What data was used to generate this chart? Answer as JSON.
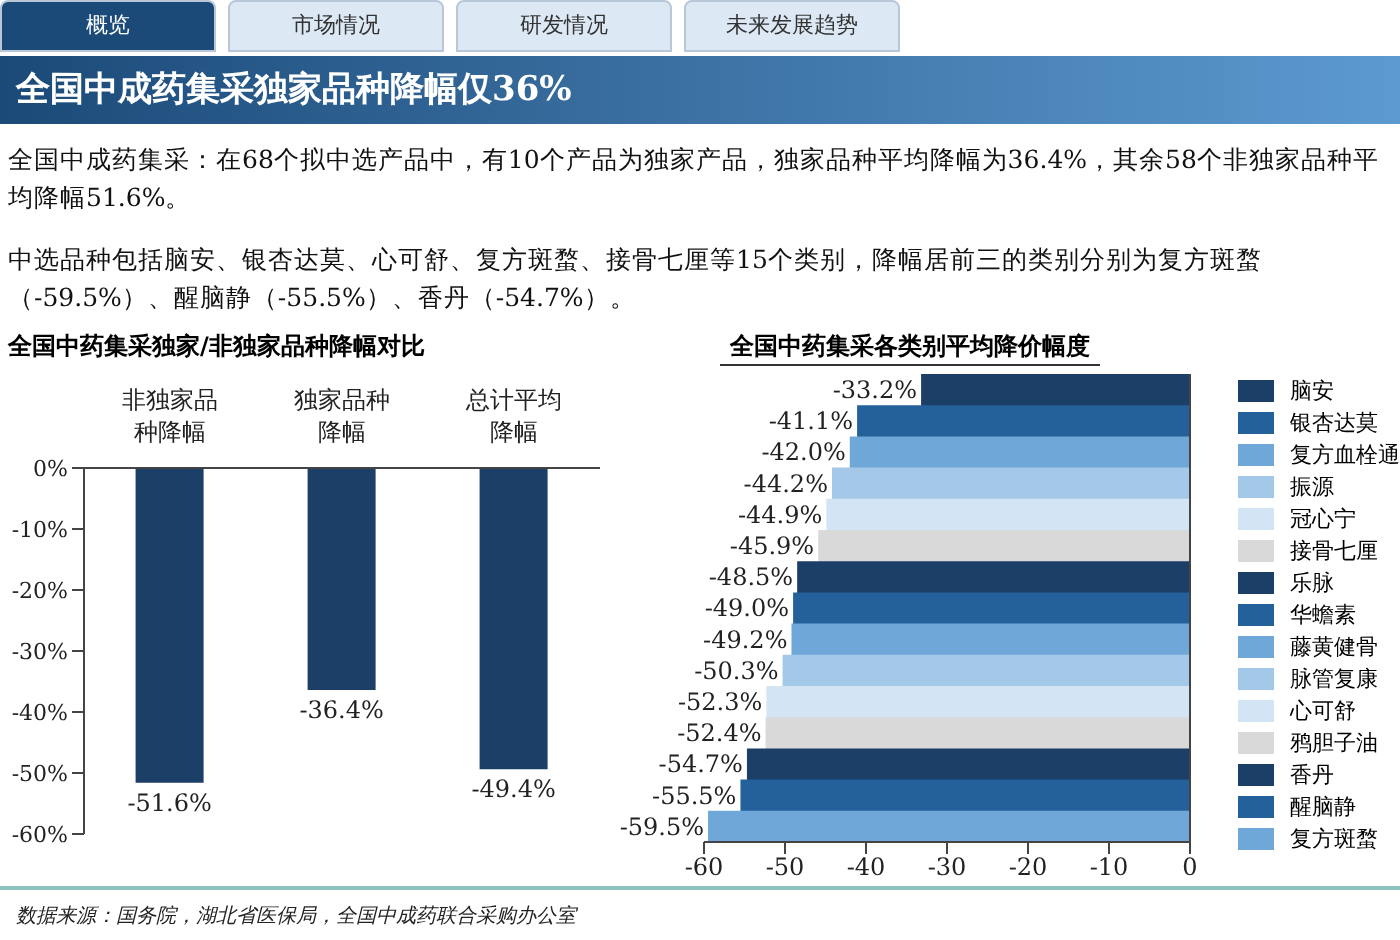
{
  "chart_data": [
    {
      "type": "other",
      "title": "全国中成药集采独家品种降幅仅36%",
      "annotations": [
        "概览",
        "市场情况",
        "研发情况",
        "未来发展趋势",
        "全国中成药集采：在68个拟中选产品中，有10个产品为独家产品，独家品种平均降幅为36.4%，其余58个非独家品种平均降幅51.6%。",
        "中选品种包括脑安、银杏达莫、心可舒、复方斑蝥、接骨七厘等15个类别，降幅居前三的类别分别为复方斑蝥（-59.5%）、醒脑静（-55.5%）、香丹（-54.7%）。",
        "数据来源：国务院，湖北省医保局，全国中成药联合采购办公室"
      ]
    },
    {
      "type": "bar",
      "title": "全国中药集采独家/非独家品种降幅对比",
      "categories": [
        "非独家品种降幅",
        "独家品种降幅",
        "总计平均降幅"
      ],
      "values": [
        -51.6,
        -36.4,
        -49.4
      ],
      "color": "#1b3f66",
      "value_labels": [
        "-51.6%",
        "-36.4%",
        "-49.4%"
      ],
      "ylim": [
        -60,
        0
      ],
      "yticks": [
        {
          "value": 0,
          "label": "0%"
        },
        {
          "value": -10,
          "label": "-10%"
        },
        {
          "value": -20,
          "label": "-20%"
        },
        {
          "value": -30,
          "label": "-30%"
        },
        {
          "value": -40,
          "label": "-40%"
        },
        {
          "value": -50,
          "label": "-50%"
        },
        {
          "value": -60,
          "label": "-60%"
        }
      ]
    },
    {
      "type": "bar",
      "orientation": "horizontal",
      "title": "全国中药集采各类别平均降价幅度",
      "categories": [
        "脑安",
        "银杏达莫",
        "复方血栓通",
        "振源",
        "冠心宁",
        "接骨七厘",
        "乐脉",
        "华蟾素",
        "藤黄健骨",
        "脉管复康",
        "心可舒",
        "鸦胆子油",
        "香丹",
        "醒脑静",
        "复方斑蝥"
      ],
      "values": [
        -33.2,
        -41.1,
        -42.0,
        -44.2,
        -44.9,
        -45.9,
        -48.5,
        -49.0,
        -49.2,
        -50.3,
        -52.3,
        -52.4,
        -54.7,
        -55.5,
        -59.5
      ],
      "colors": [
        "#1b3f66",
        "#24609a",
        "#6fa8d8",
        "#a3c8e8",
        "#d3e4f4",
        "#d9d9d9",
        "#1b3f66",
        "#24609a",
        "#6fa8d8",
        "#a3c8e8",
        "#d3e4f4",
        "#d9d9d9",
        "#1b3f66",
        "#24609a",
        "#6fa8d8"
      ],
      "value_labels": [
        "-33.2%",
        "-41.1%",
        "-42.0%",
        "-44.2%",
        "-44.9%",
        "-45.9%",
        "-48.5%",
        "-49.0%",
        "-49.2%",
        "-50.3%",
        "-52.3%",
        "-52.4%",
        "-54.7%",
        "-55.5%",
        "-59.5%"
      ],
      "xlim": [
        -60,
        0
      ],
      "xticks": [
        -60,
        -50,
        -40,
        -30,
        -20,
        -10,
        0
      ],
      "tick_labels": "x"
    }
  ]
}
